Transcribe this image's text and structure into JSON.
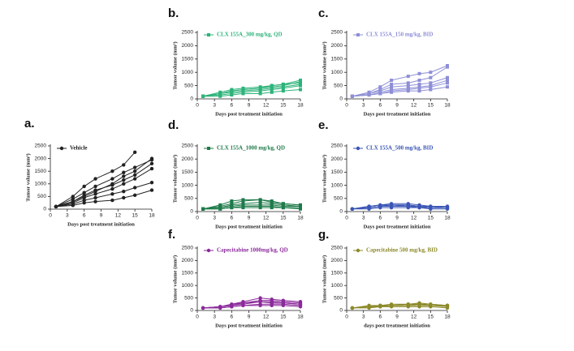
{
  "chart_data": [
    {
      "type": "line",
      "label": "a.",
      "ylabel": "Tumor volume (mm³)",
      "xlabel": "Days post treatment initiation",
      "marker": "circle",
      "x": [
        1,
        4,
        6,
        8,
        11,
        13,
        15,
        18
      ],
      "xlim": [
        0,
        18
      ],
      "xticks": [
        0,
        3,
        6,
        9,
        12,
        15,
        18
      ],
      "ylim": [
        0,
        2500
      ],
      "yticks": [
        0,
        500,
        1000,
        1500,
        2000,
        2500
      ],
      "series": [
        {
          "name": "Vehicle",
          "color": "#222222",
          "values": [
            100,
            300,
            500,
            700,
            1000,
            1300,
            1500,
            2000
          ]
        },
        {
          "color": "#222222",
          "values": [
            100,
            400,
            650,
            900,
            1200,
            1450,
            1650,
            1950
          ]
        },
        {
          "color": "#222222",
          "values": [
            100,
            500,
            900,
            1200,
            1500,
            1750,
            2250,
            null
          ]
        },
        {
          "color": "#222222",
          "values": [
            100,
            250,
            450,
            600,
            800,
            1000,
            1200,
            1600
          ]
        },
        {
          "color": "#222222",
          "values": [
            100,
            200,
            350,
            450,
            600,
            700,
            850,
            1050
          ]
        },
        {
          "color": "#222222",
          "values": [
            100,
            150,
            250,
            300,
            350,
            450,
            550,
            750
          ]
        },
        {
          "color": "#222222",
          "values": [
            100,
            300,
            550,
            750,
            950,
            1150,
            1350,
            1800
          ]
        }
      ]
    },
    {
      "type": "line",
      "label": "b.",
      "ylabel": "Tumor volume (mm³)",
      "xlabel": "Days post treatment initiation",
      "marker": "square",
      "x": [
        1,
        4,
        6,
        8,
        11,
        13,
        15,
        18
      ],
      "xlim": [
        0,
        18
      ],
      "xticks": [
        0,
        3,
        6,
        9,
        12,
        15,
        18
      ],
      "ylim": [
        0,
        2500
      ],
      "yticks": [
        0,
        500,
        1000,
        1500,
        2000,
        2500
      ],
      "series": [
        {
          "name": "CLX 155A_300 mg/kg, QD",
          "color": "#2db37a",
          "values": [
            100,
            200,
            300,
            350,
            400,
            450,
            500,
            650
          ]
        },
        {
          "color": "#2db37a",
          "values": [
            100,
            250,
            350,
            400,
            450,
            500,
            550,
            600
          ]
        },
        {
          "color": "#2db37a",
          "values": [
            100,
            150,
            200,
            250,
            300,
            350,
            400,
            500
          ]
        },
        {
          "color": "#2db37a",
          "values": [
            100,
            200,
            250,
            300,
            350,
            400,
            450,
            550
          ]
        },
        {
          "color": "#2db37a",
          "values": [
            100,
            100,
            150,
            200,
            200,
            250,
            300,
            350
          ]
        },
        {
          "color": "#2db37a",
          "values": [
            100,
            200,
            300,
            350,
            400,
            500,
            550,
            700
          ]
        }
      ]
    },
    {
      "type": "line",
      "label": "c.",
      "ylabel": "Tumor volume (mm³)",
      "xlabel": "Days post treatment initiation",
      "marker": "square",
      "x": [
        1,
        4,
        6,
        8,
        11,
        13,
        15,
        18
      ],
      "xlim": [
        0,
        18
      ],
      "xticks": [
        0,
        3,
        6,
        9,
        12,
        15,
        18
      ],
      "ylim": [
        0,
        2500
      ],
      "yticks": [
        0,
        500,
        1000,
        1500,
        2000,
        2500
      ],
      "series": [
        {
          "name": "CLX 155A_150 mg/kg, BID",
          "color": "#8e8fd6",
          "values": [
            100,
            250,
            450,
            700,
            850,
            950,
            1000,
            1250
          ]
        },
        {
          "color": "#8e8fd6",
          "values": [
            100,
            200,
            350,
            550,
            600,
            700,
            800,
            1200
          ]
        },
        {
          "color": "#8e8fd6",
          "values": [
            100,
            200,
            300,
            450,
            500,
            550,
            600,
            800
          ]
        },
        {
          "color": "#8e8fd6",
          "values": [
            100,
            150,
            250,
            350,
            400,
            450,
            500,
            700
          ]
        },
        {
          "color": "#8e8fd6",
          "values": [
            100,
            150,
            200,
            300,
            350,
            400,
            450,
            600
          ]
        },
        {
          "color": "#8e8fd6",
          "values": [
            100,
            150,
            200,
            250,
            300,
            300,
            350,
            450
          ]
        }
      ]
    },
    {
      "type": "line",
      "label": "d.",
      "ylabel": "Tumor volume (mm³)",
      "xlabel": "Days post treatment initiation",
      "marker": "square",
      "x": [
        1,
        4,
        6,
        8,
        11,
        13,
        15,
        18
      ],
      "xlim": [
        0,
        18
      ],
      "xticks": [
        0,
        3,
        6,
        9,
        12,
        15,
        18
      ],
      "ylim": [
        0,
        2500
      ],
      "yticks": [
        0,
        500,
        1000,
        1500,
        2000,
        2500
      ],
      "series": [
        {
          "name": "CLX 155A_1000 mg/kg, QD",
          "color": "#1e7a4a",
          "values": [
            100,
            250,
            400,
            450,
            450,
            400,
            300,
            250
          ]
        },
        {
          "color": "#1e7a4a",
          "values": [
            100,
            150,
            250,
            300,
            350,
            300,
            250,
            200
          ]
        },
        {
          "color": "#1e7a4a",
          "values": [
            100,
            150,
            200,
            250,
            250,
            250,
            200,
            200
          ]
        },
        {
          "color": "#1e7a4a",
          "values": [
            100,
            100,
            150,
            200,
            200,
            200,
            150,
            150
          ]
        },
        {
          "color": "#1e7a4a",
          "values": [
            100,
            100,
            150,
            150,
            150,
            150,
            150,
            100
          ]
        },
        {
          "color": "#1e7a4a",
          "values": [
            100,
            200,
            300,
            400,
            450,
            350,
            300,
            250
          ]
        }
      ]
    },
    {
      "type": "line",
      "label": "e.",
      "ylabel": "Tumor volume (mm³)",
      "xlabel": "Days post treatment initiation",
      "marker": "circle",
      "x": [
        1,
        4,
        6,
        8,
        11,
        13,
        15,
        18
      ],
      "xlim": [
        0,
        18
      ],
      "xticks": [
        0,
        3,
        6,
        9,
        12,
        15,
        18
      ],
      "ylim": [
        0,
        2500
      ],
      "yticks": [
        0,
        500,
        1000,
        1500,
        2000,
        2500
      ],
      "series": [
        {
          "name": "CLX 155A_500 mg/kg, BID",
          "color": "#3a55b5",
          "values": [
            100,
            200,
            250,
            300,
            300,
            250,
            200,
            200
          ]
        },
        {
          "color": "#3a55b5",
          "values": [
            100,
            150,
            200,
            250,
            250,
            200,
            200,
            150
          ]
        },
        {
          "color": "#3a55b5",
          "values": [
            100,
            150,
            200,
            200,
            200,
            150,
            150,
            150
          ]
        },
        {
          "color": "#3a55b5",
          "values": [
            100,
            100,
            150,
            150,
            150,
            150,
            100,
            100
          ]
        },
        {
          "color": "#3a55b5",
          "values": [
            100,
            200,
            250,
            250,
            250,
            200,
            200,
            200
          ]
        },
        {
          "color": "#3a55b5",
          "values": [
            100,
            150,
            200,
            250,
            200,
            200,
            150,
            150
          ]
        }
      ]
    },
    {
      "type": "line",
      "label": "f.",
      "ylabel": "Tumor volume (mm³)",
      "xlabel": "Days post treatment initiation",
      "marker": "circle",
      "x": [
        1,
        4,
        6,
        8,
        11,
        13,
        15,
        18
      ],
      "xlim": [
        0,
        18
      ],
      "xticks": [
        0,
        3,
        6,
        9,
        12,
        15,
        18
      ],
      "ylim": [
        0,
        2500
      ],
      "yticks": [
        0,
        500,
        1000,
        1500,
        2000,
        2500
      ],
      "series": [
        {
          "name": "Capecitabine 1000mg/kg, QD",
          "color": "#8b2a9b",
          "values": [
            100,
            150,
            250,
            350,
            500,
            450,
            400,
            350
          ]
        },
        {
          "color": "#8b2a9b",
          "values": [
            100,
            150,
            200,
            300,
            400,
            400,
            350,
            300
          ]
        },
        {
          "color": "#8b2a9b",
          "values": [
            100,
            150,
            200,
            250,
            350,
            350,
            300,
            250
          ]
        },
        {
          "color": "#8b2a9b",
          "values": [
            100,
            100,
            150,
            200,
            250,
            250,
            250,
            200
          ]
        },
        {
          "color": "#8b2a9b",
          "values": [
            100,
            150,
            250,
            300,
            350,
            300,
            300,
            250
          ]
        },
        {
          "color": "#8b2a9b",
          "values": [
            100,
            100,
            150,
            200,
            200,
            200,
            200,
            150
          ]
        }
      ]
    },
    {
      "type": "line",
      "label": "g.",
      "ylabel": "Tumor volume (mm³)",
      "xlabel": "days post treatment initiation",
      "marker": "circle",
      "x": [
        1,
        4,
        6,
        8,
        11,
        13,
        15,
        18
      ],
      "xlim": [
        0,
        18
      ],
      "xticks": [
        0,
        3,
        6,
        9,
        12,
        15,
        18
      ],
      "ylim": [
        0,
        2500
      ],
      "yticks": [
        0,
        500,
        1000,
        1500,
        2000,
        2500
      ],
      "series": [
        {
          "name": "Capecitabine 500 mg/kg, BID",
          "color": "#8c8a2a",
          "values": [
            100,
            200,
            200,
            250,
            250,
            300,
            250,
            200
          ]
        },
        {
          "color": "#8c8a2a",
          "values": [
            100,
            150,
            200,
            200,
            250,
            250,
            200,
            200
          ]
        },
        {
          "color": "#8c8a2a",
          "values": [
            100,
            150,
            150,
            200,
            200,
            200,
            200,
            150
          ]
        },
        {
          "color": "#8c8a2a",
          "values": [
            100,
            100,
            150,
            150,
            150,
            150,
            150,
            100
          ]
        },
        {
          "color": "#8c8a2a",
          "values": [
            100,
            150,
            200,
            200,
            250,
            250,
            250,
            200
          ]
        },
        {
          "color": "#8c8a2a",
          "values": [
            100,
            150,
            150,
            200,
            200,
            250,
            200,
            200
          ]
        }
      ]
    }
  ]
}
